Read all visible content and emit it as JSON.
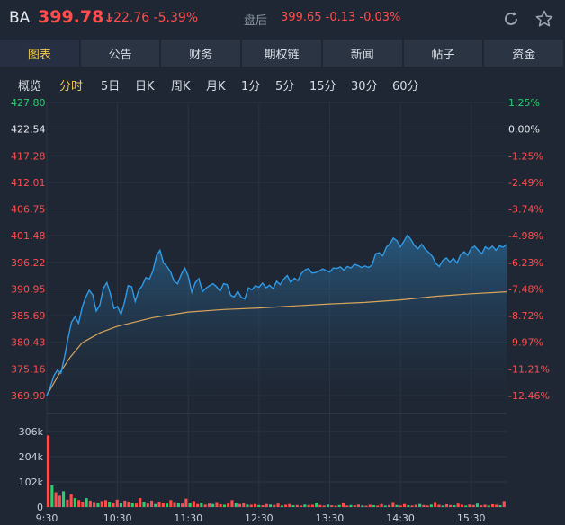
{
  "quote": {
    "symbol": "BA",
    "price": "399.78",
    "arrow": "↓",
    "change": "-22.76",
    "change_pct": "-5.39%",
    "after_hours_label": "盘后",
    "after_hours_price": "399.65",
    "after_hours_change": "-0.13",
    "after_hours_pct": "-0.03%"
  },
  "icons": {
    "refresh": "refresh-icon",
    "favorite": "star-icon"
  },
  "tabs": [
    {
      "label": "图表",
      "active": true
    },
    {
      "label": "公告",
      "active": false
    },
    {
      "label": "财务",
      "active": false
    },
    {
      "label": "期权链",
      "active": false
    },
    {
      "label": "新闻",
      "active": false
    },
    {
      "label": "帖子",
      "active": false
    },
    {
      "label": "资金",
      "active": false
    }
  ],
  "periods": [
    {
      "label": "概览",
      "active": false
    },
    {
      "label": "分时",
      "active": true
    },
    {
      "label": "5日",
      "active": false
    },
    {
      "label": "日K",
      "active": false
    },
    {
      "label": "周K",
      "active": false
    },
    {
      "label": "月K",
      "active": false
    },
    {
      "label": "1分",
      "active": false
    },
    {
      "label": "5分",
      "active": false
    },
    {
      "label": "15分",
      "active": false
    },
    {
      "label": "30分",
      "active": false
    },
    {
      "label": "60分",
      "active": false
    }
  ],
  "colors": {
    "background": "#1f2734",
    "up": "#2ecc71",
    "down": "#ff4d4d",
    "price_line": "#2f9be6",
    "avg_line": "#d9a55c",
    "active_tab": "#f2c94c"
  },
  "chart_data": {
    "type": "line",
    "price_ticks": [
      "427.80",
      "422.54",
      "417.28",
      "412.01",
      "406.75",
      "401.48",
      "396.22",
      "390.95",
      "385.69",
      "380.43",
      "375.16",
      "369.90"
    ],
    "pct_ticks": [
      "1.25%",
      "0.00%",
      "-1.25%",
      "-2.49%",
      "-3.74%",
      "-4.98%",
      "-6.23%",
      "-7.48%",
      "-8.72%",
      "-9.97%",
      "-11.21%",
      "-12.46%"
    ],
    "prev_close": 422.54,
    "ylim": [
      369.9,
      427.8
    ],
    "x_tick_labels": [
      "9:30",
      "10:30",
      "11:30",
      "12:30",
      "13:30",
      "14:30",
      "15:30"
    ],
    "x_tick_minutes": [
      0,
      60,
      120,
      180,
      240,
      300,
      360
    ],
    "x_range_minutes": [
      0,
      390
    ],
    "series": [
      {
        "role": "price",
        "points": [
          [
            0,
            369.9
          ],
          [
            3,
            371.6
          ],
          [
            6,
            373.8
          ],
          [
            9,
            374.9
          ],
          [
            12,
            374.3
          ],
          [
            15,
            377.5
          ],
          [
            18,
            381.2
          ],
          [
            21,
            384.4
          ],
          [
            24,
            385.5
          ],
          [
            27,
            384.2
          ],
          [
            30,
            387.3
          ],
          [
            33,
            389.3
          ],
          [
            36,
            390.7
          ],
          [
            39,
            389.8
          ],
          [
            42,
            386.6
          ],
          [
            45,
            387.8
          ],
          [
            48,
            391.1
          ],
          [
            51,
            392.2
          ],
          [
            54,
            389.9
          ],
          [
            57,
            387.1
          ],
          [
            60,
            387.5
          ],
          [
            63,
            385.9
          ],
          [
            66,
            388.4
          ],
          [
            69,
            391.6
          ],
          [
            72,
            391.4
          ],
          [
            75,
            388.5
          ],
          [
            78,
            390.7
          ],
          [
            81,
            391.6
          ],
          [
            84,
            393.2
          ],
          [
            87,
            392.9
          ],
          [
            90,
            394.5
          ],
          [
            93,
            397.5
          ],
          [
            96,
            398.6
          ],
          [
            99,
            396.1
          ],
          [
            102,
            395.4
          ],
          [
            105,
            394.3
          ],
          [
            108,
            392.5
          ],
          [
            111,
            392.0
          ],
          [
            114,
            393.8
          ],
          [
            117,
            395.1
          ],
          [
            120,
            393.5
          ],
          [
            123,
            390.3
          ],
          [
            126,
            392.2
          ],
          [
            129,
            393.0
          ],
          [
            132,
            390.4
          ],
          [
            135,
            391.1
          ],
          [
            138,
            391.6
          ],
          [
            141,
            392.0
          ],
          [
            144,
            391.4
          ],
          [
            147,
            390.5
          ],
          [
            150,
            392.0
          ],
          [
            153,
            391.8
          ],
          [
            156,
            389.7
          ],
          [
            159,
            389.4
          ],
          [
            162,
            390.5
          ],
          [
            165,
            389.3
          ],
          [
            168,
            389.0
          ],
          [
            171,
            391.2
          ],
          [
            174,
            390.8
          ],
          [
            177,
            391.6
          ],
          [
            180,
            391.3
          ],
          [
            183,
            392.1
          ],
          [
            186,
            391.2
          ],
          [
            189,
            391.7
          ],
          [
            192,
            391.0
          ],
          [
            195,
            392.5
          ],
          [
            198,
            391.8
          ],
          [
            201,
            392.9
          ],
          [
            204,
            393.6
          ],
          [
            207,
            392.2
          ],
          [
            210,
            393.1
          ],
          [
            213,
            392.6
          ],
          [
            216,
            394.0
          ],
          [
            219,
            394.7
          ],
          [
            222,
            395.0
          ],
          [
            225,
            394.1
          ],
          [
            228,
            394.2
          ],
          [
            231,
            394.5
          ],
          [
            234,
            394.9
          ],
          [
            237,
            394.6
          ],
          [
            240,
            394.3
          ],
          [
            243,
            395.1
          ],
          [
            246,
            395.0
          ],
          [
            249,
            395.3
          ],
          [
            252,
            394.7
          ],
          [
            255,
            395.4
          ],
          [
            258,
            395.1
          ],
          [
            261,
            395.8
          ],
          [
            264,
            395.6
          ],
          [
            267,
            395.2
          ],
          [
            270,
            395.5
          ],
          [
            273,
            395.2
          ],
          [
            276,
            395.7
          ],
          [
            279,
            397.9
          ],
          [
            282,
            398.1
          ],
          [
            285,
            397.5
          ],
          [
            288,
            399.2
          ],
          [
            291,
            399.9
          ],
          [
            294,
            401.0
          ],
          [
            297,
            400.5
          ],
          [
            300,
            399.3
          ],
          [
            303,
            400.4
          ],
          [
            306,
            401.6
          ],
          [
            309,
            400.7
          ],
          [
            312,
            399.5
          ],
          [
            315,
            398.9
          ],
          [
            318,
            399.8
          ],
          [
            321,
            398.8
          ],
          [
            324,
            398.2
          ],
          [
            327,
            397.4
          ],
          [
            330,
            396.0
          ],
          [
            333,
            395.4
          ],
          [
            336,
            396.6
          ],
          [
            339,
            397.1
          ],
          [
            342,
            396.3
          ],
          [
            345,
            397.0
          ],
          [
            348,
            396.1
          ],
          [
            351,
            397.7
          ],
          [
            354,
            398.3
          ],
          [
            357,
            397.6
          ],
          [
            360,
            399.0
          ],
          [
            363,
            399.4
          ],
          [
            366,
            398.6
          ],
          [
            369,
            397.9
          ],
          [
            372,
            399.3
          ],
          [
            375,
            398.8
          ],
          [
            378,
            399.4
          ],
          [
            381,
            398.6
          ],
          [
            384,
            399.5
          ],
          [
            387,
            399.2
          ],
          [
            390,
            399.78
          ]
        ]
      },
      {
        "role": "average",
        "points": [
          [
            0,
            369.9
          ],
          [
            10,
            374.0
          ],
          [
            20,
            377.5
          ],
          [
            30,
            380.3
          ],
          [
            45,
            382.3
          ],
          [
            60,
            383.6
          ],
          [
            90,
            385.3
          ],
          [
            120,
            386.4
          ],
          [
            150,
            386.9
          ],
          [
            180,
            387.2
          ],
          [
            210,
            387.6
          ],
          [
            240,
            388.0
          ],
          [
            270,
            388.3
          ],
          [
            300,
            388.8
          ],
          [
            330,
            389.5
          ],
          [
            360,
            390.0
          ],
          [
            390,
            390.4
          ]
        ]
      }
    ],
    "volume": {
      "tick_labels": [
        "306k",
        "204k",
        "102k",
        "0"
      ],
      "tick_values": [
        306000,
        204000,
        102000,
        0
      ],
      "ylim": [
        0,
        306000
      ],
      "bars": [
        290000,
        88000,
        60000,
        46000,
        64000,
        30000,
        52000,
        36000,
        28000,
        22000,
        36000,
        26000,
        20000,
        18000,
        24000,
        28000,
        22000,
        16000,
        30000,
        18000,
        26000,
        22000,
        18000,
        14000,
        36000,
        22000,
        14000,
        26000,
        12000,
        22000,
        18000,
        14000,
        28000,
        20000,
        18000,
        14000,
        34000,
        18000,
        24000,
        12000,
        18000,
        10000,
        14000,
        12000,
        20000,
        11000,
        9000,
        14000,
        28000,
        18000,
        12000,
        16000,
        10000,
        9000,
        12000,
        8000,
        7000,
        12000,
        10000,
        8000,
        14000,
        6000,
        9000,
        12000,
        7000,
        8000,
        6000,
        10000,
        8000,
        9000,
        18000,
        8000,
        6000,
        10000,
        7000,
        5000,
        8000,
        16000,
        6000,
        8000,
        7000,
        10000,
        6000,
        5000,
        9000,
        7000,
        6000,
        12000,
        6000,
        8000,
        20000,
        8000,
        6000,
        12000,
        7000,
        6000,
        9000,
        12000,
        8000,
        6000,
        10000,
        20000,
        9000,
        6000,
        11000,
        8000,
        7000,
        14000,
        9000,
        6000,
        10000,
        8000,
        14000,
        7000,
        9000,
        6000,
        11000,
        9000,
        7000,
        24000
      ]
    }
  }
}
